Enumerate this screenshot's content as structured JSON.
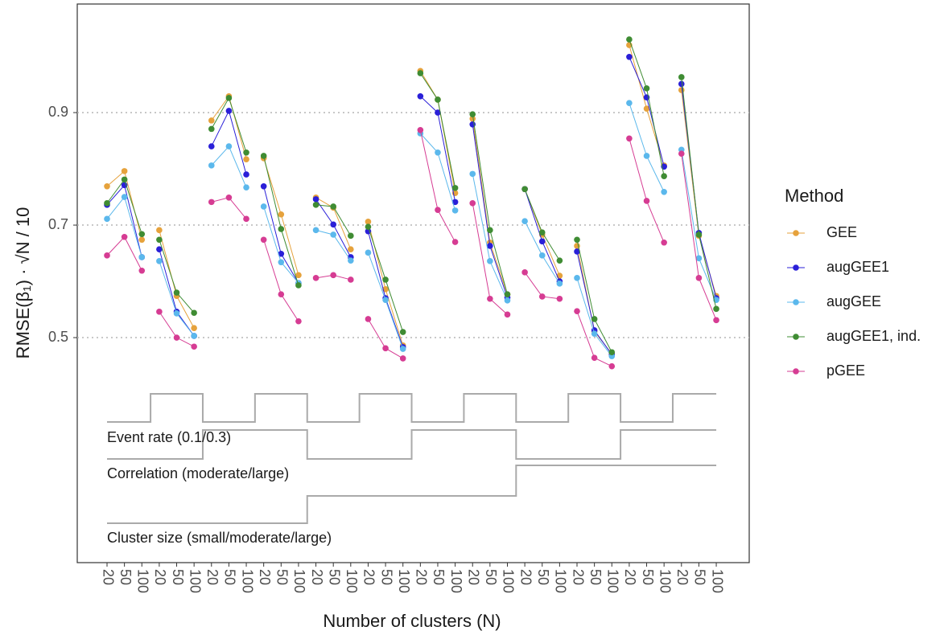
{
  "chart_data": {
    "type": "line",
    "x_label": "Number of clusters (N)",
    "y_label": "RMSE(β₁) · √N / 10",
    "legend_title": "Method",
    "legend": "right",
    "grid": true,
    "categories": [
      "20",
      "50",
      "100",
      "20",
      "50",
      "100",
      "20",
      "50",
      "100",
      "20",
      "50",
      "100",
      "20",
      "50",
      "100",
      "20",
      "50",
      "100",
      "20",
      "50",
      "100",
      "20",
      "50",
      "100",
      "20",
      "50",
      "100",
      "20",
      "50",
      "100",
      "20",
      "50",
      "100",
      "20",
      "50",
      "100"
    ],
    "ylim": [
      0.1,
      1.093
    ],
    "yticks": [
      0.5,
      0.7,
      0.9
    ],
    "factor_labels": [
      "Event rate (0.1/0.3)",
      "Correlation (moderate/large)",
      "Cluster size (small/moderate/large)"
    ],
    "series": [
      {
        "name": "GEE",
        "color": "#e6a23c",
        "values": [
          0.769,
          0.796,
          0.674,
          0.691,
          0.574,
          0.517,
          0.886,
          0.929,
          0.817,
          0.819,
          0.719,
          0.611,
          0.749,
          0.731,
          0.657,
          0.706,
          0.586,
          0.486,
          0.974,
          0.923,
          0.757,
          0.889,
          0.669,
          0.577,
          0.764,
          0.683,
          0.61,
          0.663,
          0.511,
          0.471,
          1.02,
          0.907,
          0.806,
          0.94,
          0.681,
          0.574
        ]
      },
      {
        "name": "augGEE1",
        "color": "#2a1fd8",
        "values": [
          0.736,
          0.771,
          0.643,
          0.657,
          0.546,
          0.503,
          0.84,
          0.903,
          0.79,
          0.769,
          0.649,
          0.597,
          0.746,
          0.701,
          0.643,
          0.689,
          0.57,
          0.483,
          0.929,
          0.9,
          0.741,
          0.879,
          0.663,
          0.571,
          0.764,
          0.671,
          0.6,
          0.653,
          0.513,
          0.47,
          0.999,
          0.927,
          0.804,
          0.951,
          0.686,
          0.57
        ]
      },
      {
        "name": "augGEE",
        "color": "#5bb8ec",
        "values": [
          0.711,
          0.75,
          0.643,
          0.636,
          0.543,
          0.503,
          0.806,
          0.84,
          0.767,
          0.733,
          0.634,
          0.597,
          0.691,
          0.683,
          0.637,
          0.651,
          0.567,
          0.48,
          0.863,
          0.829,
          0.726,
          0.791,
          0.636,
          0.566,
          0.707,
          0.646,
          0.596,
          0.606,
          0.507,
          0.467,
          0.917,
          0.823,
          0.759,
          0.834,
          0.641,
          0.567
        ]
      },
      {
        "name": "augGEE1, ind.",
        "color": "#3f8c33",
        "values": [
          0.739,
          0.781,
          0.684,
          0.674,
          0.58,
          0.544,
          0.871,
          0.926,
          0.829,
          0.823,
          0.693,
          0.593,
          0.736,
          0.733,
          0.681,
          0.697,
          0.603,
          0.51,
          0.97,
          0.923,
          0.766,
          0.897,
          0.691,
          0.577,
          0.764,
          0.687,
          0.637,
          0.674,
          0.533,
          0.474,
          1.03,
          0.943,
          0.787,
          0.963,
          0.683,
          0.551
        ]
      },
      {
        "name": "pGEE",
        "color": "#d63c93",
        "values": [
          0.646,
          0.679,
          0.619,
          0.546,
          0.5,
          0.484,
          0.741,
          0.749,
          0.711,
          0.674,
          0.577,
          0.529,
          0.606,
          0.611,
          0.603,
          0.533,
          0.481,
          0.463,
          0.869,
          0.727,
          0.67,
          0.739,
          0.569,
          0.541,
          0.616,
          0.573,
          0.569,
          0.547,
          0.464,
          0.449,
          0.854,
          0.743,
          0.669,
          0.827,
          0.606,
          0.531
        ]
      }
    ]
  }
}
